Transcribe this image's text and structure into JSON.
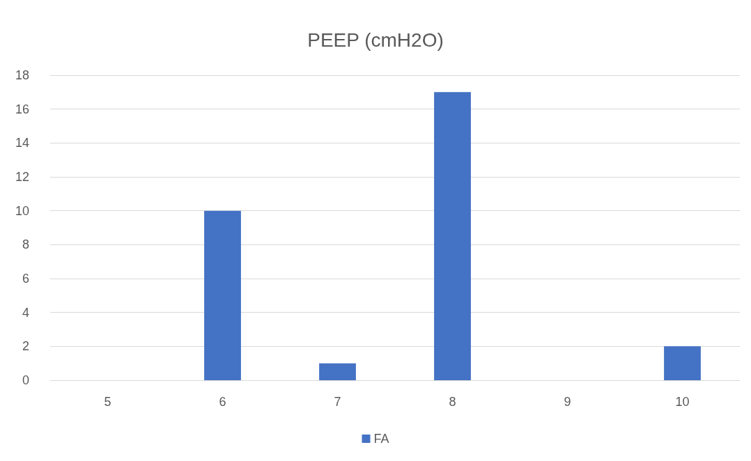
{
  "chart_data": {
    "type": "bar",
    "title": "PEEP (cmH2O)",
    "categories": [
      "5",
      "6",
      "7",
      "8",
      "9",
      "10"
    ],
    "series": [
      {
        "name": "FA",
        "color": "#4472c4",
        "values": [
          0,
          10,
          1,
          17,
          0,
          2
        ]
      }
    ],
    "ylim": [
      0,
      18
    ],
    "yticks": [
      0,
      2,
      4,
      6,
      8,
      10,
      12,
      14,
      16,
      18
    ],
    "grid": "y",
    "legend": "bottom"
  }
}
